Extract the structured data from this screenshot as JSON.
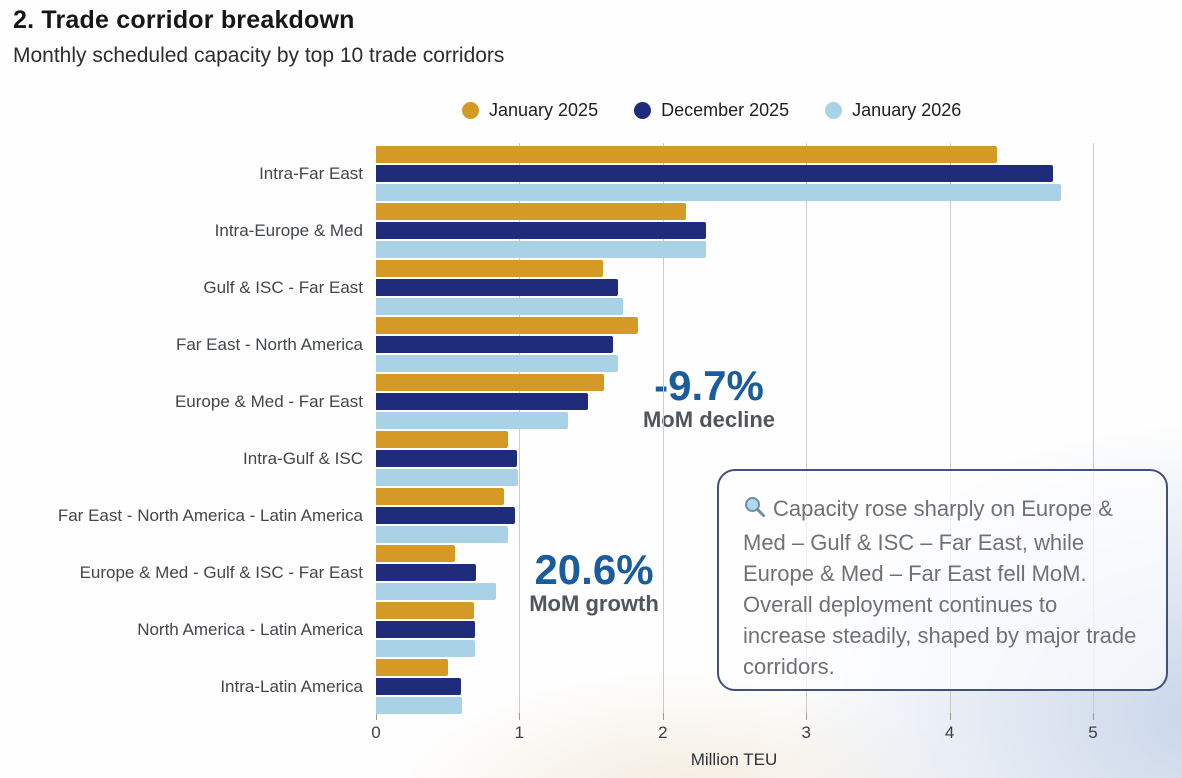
{
  "header": {
    "title": "2. Trade corridor breakdown",
    "subtitle": "Monthly scheduled capacity by top 10 trade corridors"
  },
  "legend": [
    {
      "label": "January 2025",
      "color": "#D59A25"
    },
    {
      "label": "December 2025",
      "color": "#1F2C7C"
    },
    {
      "label": "January 2026",
      "color": "#A9D2E7"
    }
  ],
  "chart_data": {
    "type": "bar",
    "orientation": "horizontal",
    "title": "Monthly scheduled capacity by top 10 trade corridors",
    "xlabel": "Million TEU",
    "xlim": [
      0,
      5
    ],
    "xticks": [
      0,
      1,
      2,
      3,
      4,
      5
    ],
    "grid": true,
    "legend_position": "top",
    "categories": [
      "Intra-Far East",
      "Intra-Europe & Med",
      "Gulf & ISC - Far East",
      "Far East - North America",
      "Europe & Med - Far East",
      "Intra-Gulf & ISC",
      "Far East - North America - Latin America",
      "Europe & Med - Gulf & ISC - Far East",
      "North America - Latin America",
      "Intra-Latin America"
    ],
    "series": [
      {
        "name": "January 2025",
        "color": "#D59A25",
        "values": [
          4.33,
          2.16,
          1.58,
          1.83,
          1.59,
          0.92,
          0.89,
          0.55,
          0.68,
          0.5
        ]
      },
      {
        "name": "December 2025",
        "color": "#1F2C7C",
        "values": [
          4.72,
          2.3,
          1.69,
          1.65,
          1.48,
          0.98,
          0.97,
          0.7,
          0.69,
          0.59
        ]
      },
      {
        "name": "January 2026",
        "color": "#A9D2E7",
        "values": [
          4.78,
          2.3,
          1.72,
          1.69,
          1.34,
          0.99,
          0.92,
          0.84,
          0.69,
          0.6
        ]
      }
    ]
  },
  "annotations": {
    "decline": {
      "value": "-9.7%",
      "label": "MoM decline"
    },
    "growth": {
      "value": "20.6%",
      "label": "MoM growth"
    }
  },
  "callout": {
    "icon": "magnifier-icon",
    "text": "Capacity rose sharply on Europe & Med – Gulf & ISC – Far East, while Europe & Med – Far East fell MoM. Overall deployment continues to increase steadily, shaped by major trade corridors."
  },
  "colors": {
    "annotation_blue": "#1A5C9C",
    "annotation_gray": "#4F555B",
    "callout_border": "#42507E",
    "gridline": "#CBCBCB"
  }
}
